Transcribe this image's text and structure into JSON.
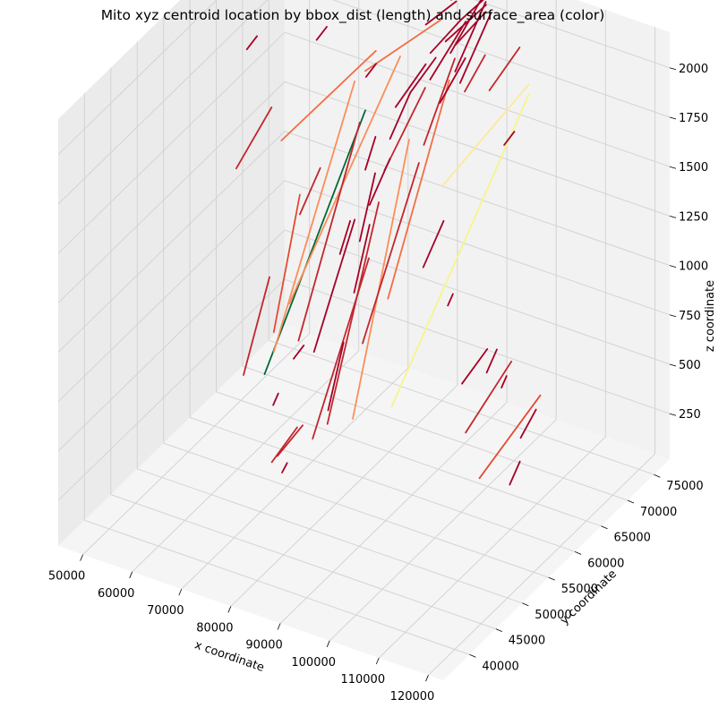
{
  "chart_data": {
    "type": "line",
    "title": "Mito xyz centroid location by bbox_dist (length) and surface_area (color)",
    "xlabel": "x coordinate",
    "ylabel": "y coordinate",
    "zlabel": "z coordinate",
    "xlim": [
      45000,
      123000
    ],
    "ylim": [
      35000,
      78000
    ],
    "zlim": [
      20,
      2180
    ],
    "xticks": [
      "50000",
      "60000",
      "70000",
      "80000",
      "90000",
      "100000",
      "110000",
      "120000"
    ],
    "yticks": [
      "40000",
      "45000",
      "50000",
      "55000",
      "60000",
      "65000",
      "70000",
      "75000"
    ],
    "zticks": [
      "250",
      "500",
      "750",
      "1000",
      "1250",
      "1500",
      "1750",
      "2000"
    ],
    "grid": true,
    "colors": {
      "pane_left": "#ebebeb",
      "pane_back": "#f2f2f2",
      "pane_floor": "#f5f5f5",
      "grid": "#d3d3d3"
    },
    "segments": [
      {
        "x1": 58000,
        "y1": 62000,
        "z1": 300,
        "x2": 72000,
        "y2": 68000,
        "z2": 1600,
        "color": "#006837"
      },
      {
        "x1": 88000,
        "y1": 58000,
        "z1": 500,
        "x2": 103000,
        "y2": 70000,
        "z2": 1900,
        "color": "#f7f48c"
      },
      {
        "x1": 92000,
        "y1": 64000,
        "z1": 1500,
        "x2": 103000,
        "y2": 70000,
        "z2": 1950,
        "color": "#fee999"
      },
      {
        "x1": 55000,
        "y1": 68000,
        "z1": 1300,
        "x2": 72000,
        "y2": 70000,
        "z2": 1850,
        "color": "#f46d43"
      },
      {
        "x1": 72000,
        "y1": 68000,
        "z1": 1800,
        "x2": 83000,
        "y2": 72000,
        "z2": 2050,
        "color": "#f46d43"
      },
      {
        "x1": 62000,
        "y1": 60000,
        "z1": 500,
        "x2": 72000,
        "y2": 66000,
        "z2": 1800,
        "color": "#fb8d59"
      },
      {
        "x1": 63000,
        "y1": 62000,
        "z1": 700,
        "x2": 78000,
        "y2": 69000,
        "z2": 1900,
        "color": "#fb8d59"
      },
      {
        "x1": 78000,
        "y1": 60000,
        "z1": 300,
        "x2": 83000,
        "y2": 66000,
        "z2": 1600,
        "color": "#fb8d59"
      },
      {
        "x1": 83000,
        "y1": 62000,
        "z1": 900,
        "x2": 89000,
        "y2": 68000,
        "z2": 1900,
        "color": "#f46d43"
      },
      {
        "x1": 109000,
        "y1": 55000,
        "z1": 400,
        "x2": 116000,
        "y2": 60000,
        "z2": 750,
        "color": "#e34a33"
      },
      {
        "x1": 62000,
        "y1": 60000,
        "z1": 600,
        "x2": 63000,
        "y2": 64000,
        "z2": 1200,
        "color": "#e34a33"
      },
      {
        "x1": 48000,
        "y1": 66000,
        "z1": 1150,
        "x2": 53000,
        "y2": 68000,
        "z2": 1450,
        "color": "#c3262d"
      },
      {
        "x1": 67000,
        "y1": 60000,
        "z1": 600,
        "x2": 73000,
        "y2": 66000,
        "z2": 1600,
        "color": "#c3262d"
      },
      {
        "x1": 75000,
        "y1": 58000,
        "z1": 300,
        "x2": 79000,
        "y2": 64000,
        "z2": 1300,
        "color": "#c3262d"
      },
      {
        "x1": 80000,
        "y1": 60000,
        "z1": 700,
        "x2": 85000,
        "y2": 66000,
        "z2": 1500,
        "color": "#c3262d"
      },
      {
        "x1": 72000,
        "y1": 58000,
        "z1": 200,
        "x2": 77000,
        "y2": 64000,
        "z2": 1000,
        "color": "#c3262d"
      },
      {
        "x1": 68000,
        "y1": 54000,
        "z1": 150,
        "x2": 71000,
        "y2": 56000,
        "z2": 300,
        "color": "#c3262d"
      },
      {
        "x1": 103000,
        "y1": 58000,
        "z1": 500,
        "x2": 108000,
        "y2": 62000,
        "z2": 800,
        "color": "#c3262d"
      },
      {
        "x1": 67000,
        "y1": 56000,
        "z1": 120,
        "x2": 70000,
        "y2": 58000,
        "z2": 250,
        "color": "#c3262d"
      },
      {
        "x1": 58000,
        "y1": 58000,
        "z1": 400,
        "x2": 59000,
        "y2": 62000,
        "z2": 800,
        "color": "#c3262d"
      },
      {
        "x1": 78000,
        "y1": 66000,
        "z1": 1400,
        "x2": 82000,
        "y2": 70000,
        "z2": 1750,
        "color": "#c3262d"
      },
      {
        "x1": 86000,
        "y1": 66000,
        "z1": 1600,
        "x2": 88000,
        "y2": 70000,
        "z2": 1950,
        "color": "#c3262d"
      },
      {
        "x1": 95000,
        "y1": 70000,
        "z1": 1850,
        "x2": 99000,
        "y2": 72000,
        "z2": 2050,
        "color": "#c3262d"
      },
      {
        "x1": 90000,
        "y1": 70000,
        "z1": 1800,
        "x2": 92000,
        "y2": 72000,
        "z2": 1950,
        "color": "#c3262d"
      },
      {
        "x1": 63000,
        "y1": 64000,
        "z1": 1100,
        "x2": 65000,
        "y2": 66000,
        "z2": 1300,
        "color": "#c3262d"
      },
      {
        "x1": 85000,
        "y1": 72000,
        "z1": 1900,
        "x2": 89000,
        "y2": 74000,
        "z2": 2150,
        "color": "#a50026"
      },
      {
        "x1": 86000,
        "y1": 72000,
        "z1": 1950,
        "x2": 90000,
        "y2": 74000,
        "z2": 2100,
        "color": "#a50026"
      },
      {
        "x1": 87000,
        "y1": 71000,
        "z1": 1850,
        "x2": 90000,
        "y2": 74000,
        "z2": 2150,
        "color": "#a50026"
      },
      {
        "x1": 84000,
        "y1": 72000,
        "z1": 1950,
        "x2": 89000,
        "y2": 75000,
        "z2": 2100,
        "color": "#a50026"
      },
      {
        "x1": 88000,
        "y1": 71000,
        "z1": 1800,
        "x2": 91000,
        "y2": 74000,
        "z2": 2100,
        "color": "#a50026"
      },
      {
        "x1": 83000,
        "y1": 70000,
        "z1": 1800,
        "x2": 87000,
        "y2": 73000,
        "z2": 2050,
        "color": "#a50026"
      },
      {
        "x1": 86000,
        "y1": 73000,
        "z1": 2050,
        "x2": 90000,
        "y2": 75000,
        "z2": 2170,
        "color": "#a50026"
      },
      {
        "x1": 82000,
        "y1": 71000,
        "z1": 1900,
        "x2": 86000,
        "y2": 73000,
        "z2": 2050,
        "color": "#a50026"
      },
      {
        "x1": 80000,
        "y1": 72000,
        "z1": 2000,
        "x2": 84000,
        "y2": 74000,
        "z2": 2100,
        "color": "#a50026"
      },
      {
        "x1": 85000,
        "y1": 70000,
        "z1": 1700,
        "x2": 88000,
        "y2": 72000,
        "z2": 1900,
        "color": "#a50026"
      },
      {
        "x1": 79000,
        "y1": 70000,
        "z1": 1700,
        "x2": 82000,
        "y2": 72000,
        "z2": 1850,
        "color": "#a50026"
      },
      {
        "x1": 76000,
        "y1": 70000,
        "z1": 1600,
        "x2": 80000,
        "y2": 72000,
        "z2": 1800,
        "color": "#a50026"
      },
      {
        "x1": 77000,
        "y1": 74000,
        "z1": 2100,
        "x2": 80000,
        "y2": 75000,
        "z2": 2150,
        "color": "#a50026"
      },
      {
        "x1": 83000,
        "y1": 74000,
        "z1": 2100,
        "x2": 86000,
        "y2": 75000,
        "z2": 2170,
        "color": "#a50026"
      },
      {
        "x1": 81000,
        "y1": 74000,
        "z1": 2100,
        "x2": 83000,
        "y2": 75000,
        "z2": 2140,
        "color": "#a50026"
      },
      {
        "x1": 70000,
        "y1": 64000,
        "z1": 800,
        "x2": 72000,
        "y2": 66000,
        "z2": 1100,
        "color": "#a50026"
      },
      {
        "x1": 68000,
        "y1": 62000,
        "z1": 500,
        "x2": 70000,
        "y2": 64000,
        "z2": 800,
        "color": "#a50026"
      },
      {
        "x1": 74000,
        "y1": 64000,
        "z1": 800,
        "x2": 75000,
        "y2": 66000,
        "z2": 1100,
        "color": "#a50026"
      },
      {
        "x1": 73000,
        "y1": 60000,
        "z1": 300,
        "x2": 74000,
        "y2": 62000,
        "z2": 600,
        "color": "#a50026"
      },
      {
        "x1": 75000,
        "y1": 66000,
        "z1": 1200,
        "x2": 77000,
        "y2": 68000,
        "z2": 1400,
        "color": "#a50026"
      },
      {
        "x1": 73000,
        "y1": 66000,
        "z1": 1000,
        "x2": 74000,
        "y2": 68000,
        "z2": 1300,
        "color": "#a50026"
      },
      {
        "x1": 77000,
        "y1": 68000,
        "z1": 1500,
        "x2": 79000,
        "y2": 70000,
        "z2": 1700,
        "color": "#a50026"
      },
      {
        "x1": 72000,
        "y1": 68000,
        "z1": 1300,
        "x2": 73000,
        "y2": 69000,
        "z2": 1450,
        "color": "#a50026"
      },
      {
        "x1": 69000,
        "y1": 66000,
        "z1": 900,
        "x2": 70000,
        "y2": 67000,
        "z2": 1050,
        "color": "#a50026"
      },
      {
        "x1": 98000,
        "y1": 62000,
        "z1": 600,
        "x2": 101000,
        "y2": 64000,
        "z2": 750,
        "color": "#a50026"
      },
      {
        "x1": 103000,
        "y1": 62000,
        "z1": 700,
        "x2": 104000,
        "y2": 63000,
        "z2": 800,
        "color": "#a50026"
      },
      {
        "x1": 88000,
        "y1": 64000,
        "z1": 1050,
        "x2": 90000,
        "y2": 66000,
        "z2": 1250,
        "color": "#a50026"
      },
      {
        "x1": 112000,
        "y1": 60000,
        "z1": 500,
        "x2": 113000,
        "y2": 62000,
        "z2": 600,
        "color": "#a50026"
      },
      {
        "x1": 113000,
        "y1": 57000,
        "z1": 350,
        "x2": 114000,
        "y2": 58000,
        "z2": 450,
        "color": "#a50026"
      },
      {
        "x1": 48000,
        "y1": 68000,
        "z1": 1700,
        "x2": 49000,
        "y2": 69000,
        "z2": 1750,
        "color": "#a50026"
      },
      {
        "x1": 60000,
        "y1": 70000,
        "z1": 1800,
        "x2": 61000,
        "y2": 71000,
        "z2": 1850,
        "color": "#a50026"
      },
      {
        "x1": 70000,
        "y1": 70000,
        "z1": 1700,
        "x2": 71000,
        "y2": 71000,
        "z2": 1750,
        "color": "#a50026"
      },
      {
        "x1": 66000,
        "y1": 60000,
        "z1": 500,
        "x2": 67000,
        "y2": 61000,
        "z2": 550,
        "color": "#a50026"
      },
      {
        "x1": 64000,
        "y1": 58000,
        "z1": 300,
        "x2": 64500,
        "y2": 58500,
        "z2": 350,
        "color": "#a50026"
      },
      {
        "x1": 69000,
        "y1": 55000,
        "z1": 80,
        "x2": 69500,
        "y2": 55500,
        "z2": 120,
        "color": "#a50026"
      },
      {
        "x1": 98000,
        "y1": 70000,
        "z1": 1600,
        "x2": 99000,
        "y2": 71000,
        "z2": 1650,
        "color": "#a50026"
      },
      {
        "x1": 93000,
        "y1": 64000,
        "z1": 900,
        "x2": 93500,
        "y2": 64500,
        "z2": 950,
        "color": "#a50026"
      },
      {
        "x1": 106000,
        "y1": 62000,
        "z1": 650,
        "x2": 106500,
        "y2": 62500,
        "z2": 700,
        "color": "#a50026"
      }
    ]
  }
}
